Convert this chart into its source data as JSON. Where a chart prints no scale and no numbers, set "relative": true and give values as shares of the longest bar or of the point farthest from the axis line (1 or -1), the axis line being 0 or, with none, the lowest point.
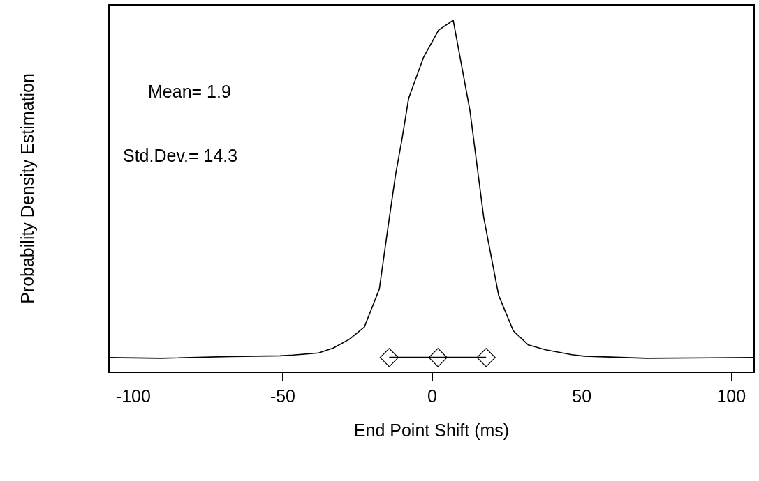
{
  "chart_data": {
    "type": "line",
    "xlabel": "End Point Shift (ms)",
    "ylabel": "Probability Density Estimation",
    "relative": true,
    "xlim": [
      -107.9,
      107.4
    ],
    "xticks": [
      -100,
      -50,
      0,
      50,
      100
    ],
    "annotations": [
      "Mean= 1.9",
      "Std.Dev.= 14.3"
    ],
    "series": [
      {
        "color": "#000000",
        "marker": "none",
        "x": [
          -107.9,
          -91,
          -67.4,
          -50.9,
          -46.5,
          -38.0,
          -33.1,
          -27.7,
          -22.7,
          -17.7,
          -14.8,
          -12.3,
          -10.2,
          -7.9,
          -2.9,
          2.1,
          7.0,
          12.6,
          17.2,
          22.2,
          27.1,
          32.1,
          37.9,
          46.7,
          50.8,
          71.6,
          107.4
        ],
        "values": [
          0.04,
          0.038,
          0.043,
          0.045,
          0.047,
          0.053,
          0.067,
          0.092,
          0.127,
          0.235,
          0.411,
          0.559,
          0.658,
          0.778,
          0.895,
          0.972,
          1.0,
          0.743,
          0.439,
          0.217,
          0.116,
          0.076,
          0.062,
          0.048,
          0.044,
          0.038,
          0.04
        ]
      },
      {
        "color": "#000000",
        "marker": "diamond",
        "x": [
          -14.4,
          1.9,
          18.0
        ],
        "values": [
          0.04,
          0.04,
          0.04
        ]
      }
    ]
  }
}
